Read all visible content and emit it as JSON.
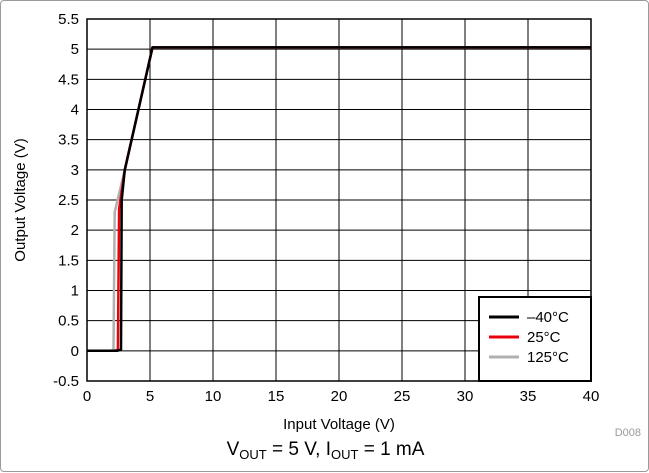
{
  "chart_data": {
    "type": "line",
    "xlabel": "Input Voltage (V)",
    "ylabel": "Output Voltage (V)",
    "xlim": [
      0,
      40
    ],
    "ylim": [
      -0.5,
      5.5
    ],
    "xticks": [
      0,
      5,
      10,
      15,
      20,
      25,
      30,
      35,
      40
    ],
    "yticks": [
      -0.5,
      0,
      0.5,
      1,
      1.5,
      2,
      2.5,
      3,
      3.5,
      4,
      4.5,
      5,
      5.5
    ],
    "grid": true,
    "legend_position": "bottom-right",
    "series": [
      {
        "name": "–40°C",
        "color": "#000000",
        "x": [
          0,
          2.4,
          2.7,
          2.75,
          3.0,
          5.2,
          40
        ],
        "y": [
          0,
          0,
          0.02,
          2.5,
          3.0,
          5.03,
          5.03
        ]
      },
      {
        "name": "25°C",
        "color": "#e8000b",
        "x": [
          0,
          2.2,
          2.45,
          2.55,
          3.0,
          5.2,
          40
        ],
        "y": [
          0,
          0,
          0.02,
          2.35,
          3.0,
          5.03,
          5.03
        ]
      },
      {
        "name": "125°C",
        "color": "#b0b0b0",
        "x": [
          0,
          1.9,
          2.1,
          2.2,
          3.0,
          5.2,
          40
        ],
        "y": [
          0,
          0,
          0.02,
          2.3,
          3.0,
          5.03,
          5.03
        ]
      }
    ],
    "doc_id": "D008",
    "caption": {
      "v_sym": "V",
      "v_sub": "OUT",
      "v_val": " = 5 V, ",
      "i_sym": "I",
      "i_sub": "OUT",
      "i_val": " = 1 mA"
    }
  }
}
